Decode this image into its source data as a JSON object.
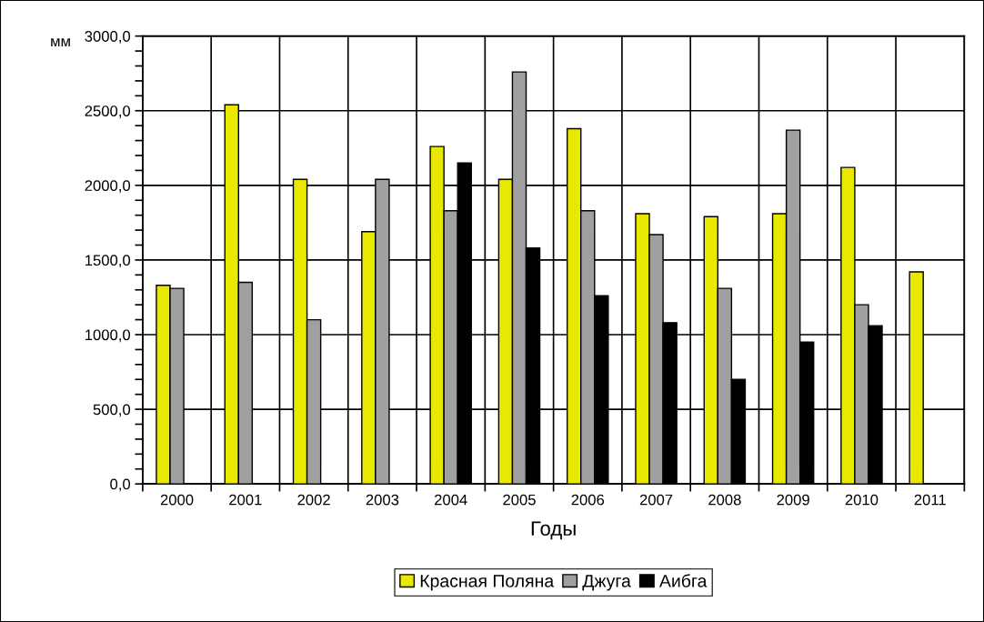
{
  "chart_data": {
    "type": "bar",
    "xlabel": "Годы",
    "ylabel": "мм",
    "categories": [
      "2000",
      "2001",
      "2002",
      "2003",
      "2004",
      "2005",
      "2006",
      "2007",
      "2008",
      "2009",
      "2010",
      "2011"
    ],
    "series": [
      {
        "name": "Красная Поляна",
        "color": "#e8e800",
        "values": [
          1330,
          2540,
          2040,
          1690,
          2260,
          2040,
          2380,
          1810,
          1790,
          1810,
          2120,
          1420
        ]
      },
      {
        "name": "Джуга",
        "color": "#a0a0a0",
        "values": [
          1310,
          1350,
          1100,
          2040,
          1830,
          2760,
          1830,
          1670,
          1310,
          2370,
          1200,
          null
        ]
      },
      {
        "name": "Аибга",
        "color": "#000000",
        "values": [
          null,
          null,
          null,
          null,
          2150,
          1580,
          1260,
          1080,
          700,
          950,
          1060,
          null
        ]
      }
    ],
    "ylim": [
      0,
      3000
    ],
    "yticks": [
      {
        "value": 0,
        "label": "0,0"
      },
      {
        "value": 500,
        "label": "500,0"
      },
      {
        "value": 1000,
        "label": "1000,0"
      },
      {
        "value": 1500,
        "label": "1500,0"
      },
      {
        "value": 2000,
        "label": "2000,0"
      },
      {
        "value": 2500,
        "label": "2500,0"
      },
      {
        "value": 3000,
        "label": "3000,0"
      }
    ],
    "grid": true,
    "legend": "bottom"
  }
}
